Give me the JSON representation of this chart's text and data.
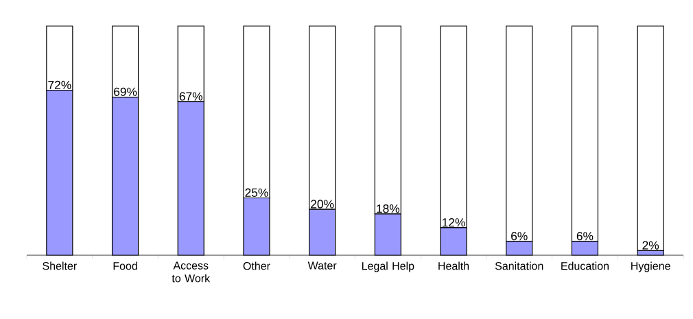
{
  "chart_data": {
    "type": "bar",
    "stacked": true,
    "categories": [
      "Shelter",
      "Food",
      "Access to Work",
      "Other",
      "Water",
      "Legal Help",
      "Health",
      "Sanitation",
      "Education",
      "Hygiene"
    ],
    "series": [
      {
        "color": "#9999ff",
        "values": [
          72,
          69,
          67,
          25,
          20,
          18,
          12,
          6,
          6,
          2
        ],
        "value_labels": [
          "72%",
          "69%",
          "67%",
          "25%",
          "20%",
          "18%",
          "12%",
          "6%",
          "6%",
          "2%"
        ]
      },
      {
        "color": "#ffffff",
        "values": [
          28,
          31,
          33,
          75,
          80,
          82,
          88,
          94,
          94,
          98
        ]
      }
    ],
    "ylim": [
      0,
      100
    ],
    "tick_labels": "x",
    "grid": false,
    "legend": false
  }
}
